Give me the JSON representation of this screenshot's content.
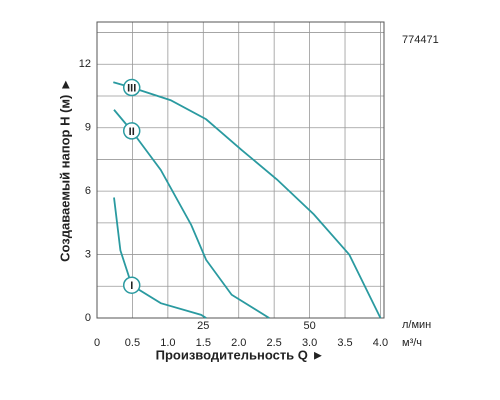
{
  "chart_data": {
    "type": "line",
    "code": "774471",
    "y_label": "Создаваемый напор H (м) ►",
    "x_label": "Производительность Q ►",
    "x_unit": "м³/ч",
    "x2_unit": "л/мин",
    "xlim": [
      0,
      4.05
    ],
    "xticks": [
      0,
      0.5,
      {
        "value": 1,
        "label": "1.0"
      },
      1.5,
      {
        "value": 2,
        "label": "2.0"
      },
      2.5,
      {
        "value": 3,
        "label": "3.0"
      },
      3.5,
      {
        "value": 4,
        "label": "4.0"
      }
    ],
    "x2lim": [
      0,
      67.5
    ],
    "x2ticks": [
      25,
      50
    ],
    "ylim": [
      0,
      14
    ],
    "yticks": [
      0,
      3,
      6,
      9,
      12
    ],
    "grid": true,
    "series": [
      {
        "name": "I",
        "color": "#2a9aa0",
        "x": [
          0.24,
          0.33,
          0.49,
          0.9,
          1.47,
          1.54
        ],
        "values": [
          5.7,
          3.2,
          1.55,
          0.7,
          0.15,
          0
        ]
      },
      {
        "name": "II",
        "color": "#2a9aa0",
        "x": [
          0.24,
          0.49,
          0.9,
          1.33,
          1.54,
          1.9,
          2.43
        ],
        "values": [
          9.85,
          8.85,
          7.0,
          4.4,
          2.75,
          1.1,
          0
        ]
      },
      {
        "name": "III",
        "color": "#2a9aa0",
        "x": [
          0.23,
          0.49,
          1.04,
          1.54,
          2.04,
          2.54,
          3.06,
          3.56,
          4.0
        ],
        "values": [
          11.15,
          10.9,
          10.3,
          9.4,
          7.95,
          6.55,
          4.9,
          3.0,
          0
        ]
      }
    ]
  }
}
